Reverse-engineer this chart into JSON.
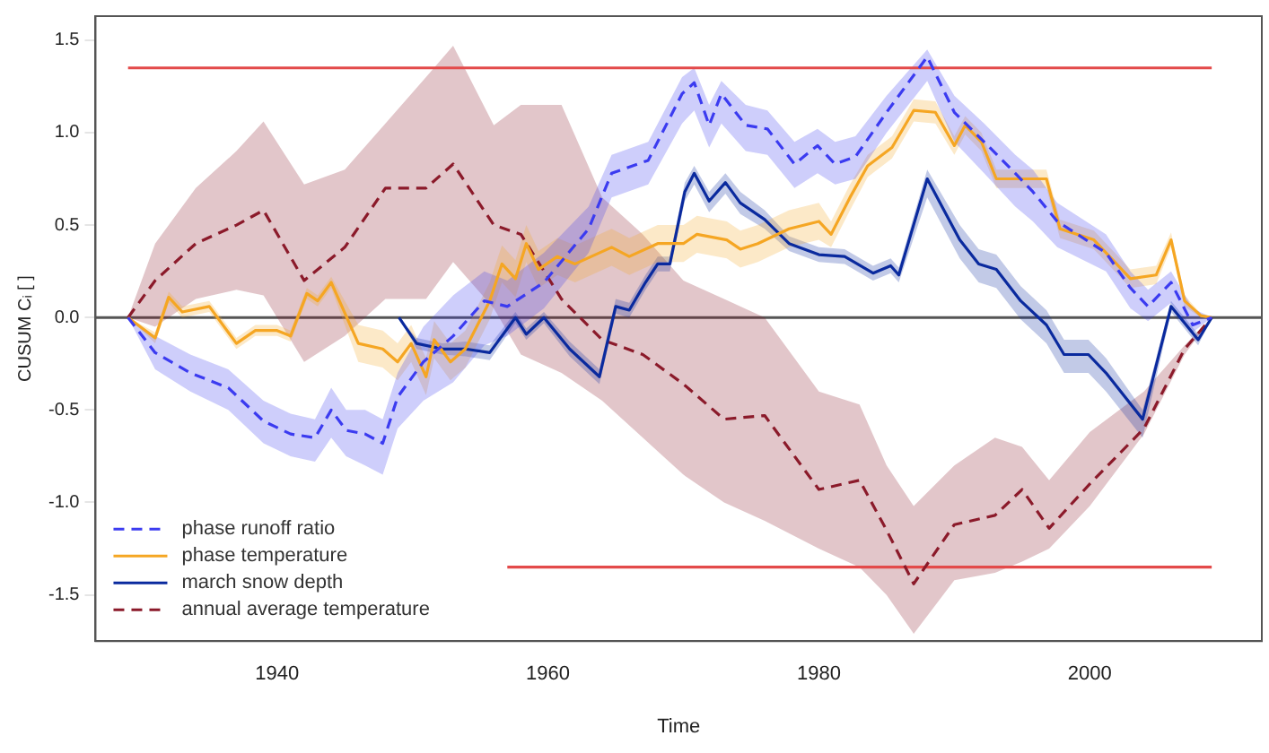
{
  "chart_data": {
    "type": "line",
    "xlabel": "Time",
    "ylabel": "CUSUM Cᵢ [ ]",
    "xlim": [
      1926.6,
      2012.7
    ],
    "ylim": [
      -1.75,
      1.63
    ],
    "xticks": [
      1940,
      1960,
      1980,
      2000
    ],
    "yticks": [
      {
        "value": -1.5,
        "label": "-1.5"
      },
      {
        "value": -1.0,
        "label": "-1.0"
      },
      {
        "value": -0.5,
        "label": "-0.5"
      },
      {
        "value": 0,
        "label": "0.0"
      },
      {
        "value": 0.5,
        "label": "0.5"
      },
      {
        "value": 1.0,
        "label": "1.0"
      },
      {
        "value": 1.5,
        "label": "1.5"
      }
    ],
    "grid": false,
    "legend": "bottom left",
    "marker": "none",
    "ref_lines": [
      {
        "axis": "y",
        "value": 0,
        "color": "#555555"
      }
    ],
    "series": [
      {
        "name": "phase runoff ratio",
        "color": "#3b3bf0",
        "line_style": "dashed",
        "x": [
          1929,
          1931,
          1933.6,
          1936.4,
          1939,
          1941,
          1942.8,
          1944,
          1945.1,
          1946.5,
          1947.8,
          1948.9,
          1950.8,
          1953,
          1955.3,
          1957,
          1959.7,
          1963,
          1964.7,
          1967.4,
          1969.9,
          1970.8,
          1971.9,
          1972.8,
          1974.6,
          1976.2,
          1978.2,
          1979.9,
          1981.2,
          1982.7,
          1985,
          1988,
          1990,
          1992.2,
          1994.5,
          1995.8,
          1997.6,
          2001.2,
          2003,
          2004.3,
          2006,
          2007.6,
          2009
        ],
        "values": [
          0,
          -0.19,
          -0.3,
          -0.38,
          -0.56,
          -0.63,
          -0.65,
          -0.5,
          -0.61,
          -0.63,
          -0.68,
          -0.43,
          -0.24,
          -0.1,
          0.09,
          0.06,
          0.19,
          0.48,
          0.78,
          0.85,
          1.21,
          1.27,
          1.04,
          1.21,
          1.04,
          1.02,
          0.83,
          0.93,
          0.83,
          0.87,
          1.11,
          1.41,
          1.11,
          0.95,
          0.78,
          0.68,
          0.52,
          0.35,
          0.16,
          0.06,
          0.19,
          -0.04,
          0
        ],
        "lower": [
          0,
          -0.28,
          -0.4,
          -0.5,
          -0.68,
          -0.75,
          -0.78,
          -0.65,
          -0.75,
          -0.8,
          -0.85,
          -0.6,
          -0.45,
          -0.35,
          -0.15,
          -0.1,
          0.05,
          0.35,
          0.65,
          0.72,
          1.05,
          1.12,
          0.92,
          1.05,
          0.9,
          0.88,
          0.7,
          0.78,
          0.72,
          0.75,
          1.0,
          1.28,
          0.95,
          0.78,
          0.6,
          0.52,
          0.38,
          0.25,
          0.05,
          -0.02,
          0.08,
          -0.08,
          0
        ],
        "upper": [
          0,
          -0.1,
          -0.2,
          -0.28,
          -0.45,
          -0.52,
          -0.55,
          -0.38,
          -0.5,
          -0.5,
          -0.55,
          -0.3,
          -0.05,
          0.12,
          0.25,
          0.2,
          0.35,
          0.6,
          0.88,
          0.95,
          1.3,
          1.35,
          1.15,
          1.28,
          1.15,
          1.12,
          0.95,
          1.02,
          0.95,
          0.98,
          1.2,
          1.45,
          1.2,
          1.05,
          0.88,
          0.8,
          0.62,
          0.45,
          0.25,
          0.15,
          0.25,
          0.05,
          0
        ]
      },
      {
        "name": "phase temperature",
        "color": "#f5a623",
        "line_style": "solid",
        "x": [
          1929,
          1931,
          1932,
          1933,
          1935,
          1937,
          1938.4,
          1940,
          1941,
          1942.2,
          1943,
          1944,
          1946,
          1947.8,
          1948.9,
          1949.9,
          1951,
          1951.6,
          1952.8,
          1953.9,
          1955.7,
          1956.6,
          1957.6,
          1958.4,
          1959.3,
          1960.7,
          1962,
          1964.7,
          1966,
          1968.1,
          1970,
          1971,
          1973.2,
          1974.2,
          1975.5,
          1977.8,
          1980,
          1980.9,
          1982.3,
          1983.6,
          1985.4,
          1987,
          1988.6,
          1990,
          1990.8,
          1992,
          1993.1,
          1996.8,
          1997.8,
          2000.3,
          2003,
          2004.9,
          2006,
          2007,
          2008.2,
          2009
        ],
        "values": [
          0,
          -0.11,
          0.11,
          0.03,
          0.06,
          -0.14,
          -0.07,
          -0.07,
          -0.1,
          0.13,
          0.09,
          0.19,
          -0.14,
          -0.17,
          -0.24,
          -0.14,
          -0.32,
          -0.12,
          -0.24,
          -0.17,
          0.09,
          0.29,
          0.21,
          0.4,
          0.26,
          0.33,
          0.29,
          0.38,
          0.33,
          0.4,
          0.4,
          0.45,
          0.42,
          0.37,
          0.4,
          0.48,
          0.52,
          0.45,
          0.65,
          0.82,
          0.92,
          1.12,
          1.11,
          0.93,
          1.04,
          0.95,
          0.75,
          0.75,
          0.48,
          0.42,
          0.21,
          0.23,
          0.42,
          0.09,
          0.01,
          0
        ],
        "lower": [
          0,
          -0.14,
          0.08,
          0,
          0.03,
          -0.17,
          -0.1,
          -0.1,
          -0.13,
          0.1,
          0.06,
          0.16,
          -0.24,
          -0.27,
          -0.34,
          -0.24,
          -0.42,
          -0.22,
          -0.34,
          -0.27,
          -0.01,
          0.19,
          0.11,
          0.3,
          0.16,
          0.23,
          0.19,
          0.28,
          0.23,
          0.3,
          0.3,
          0.35,
          0.32,
          0.27,
          0.3,
          0.38,
          0.42,
          0.38,
          0.58,
          0.76,
          0.86,
          1.06,
          1.05,
          0.88,
          0.99,
          0.9,
          0.7,
          0.7,
          0.43,
          0.37,
          0.16,
          0.18,
          0.38,
          0.06,
          0,
          0
        ],
        "upper": [
          0,
          -0.08,
          0.14,
          0.06,
          0.09,
          -0.11,
          -0.04,
          -0.04,
          -0.07,
          0.16,
          0.12,
          0.22,
          -0.04,
          -0.07,
          -0.14,
          -0.04,
          -0.22,
          -0.02,
          -0.14,
          -0.07,
          0.19,
          0.39,
          0.31,
          0.5,
          0.36,
          0.43,
          0.39,
          0.48,
          0.43,
          0.5,
          0.5,
          0.55,
          0.52,
          0.47,
          0.5,
          0.58,
          0.62,
          0.52,
          0.72,
          0.88,
          0.98,
          1.18,
          1.17,
          0.98,
          1.09,
          1.0,
          0.8,
          0.8,
          0.53,
          0.47,
          0.26,
          0.28,
          0.46,
          0.12,
          0.02,
          0
        ]
      },
      {
        "name": "march snow depth",
        "color": "#0a2a9e",
        "line_style": "solid",
        "x": [
          1949,
          1950.3,
          1952.2,
          1953.9,
          1955.7,
          1957.6,
          1958.4,
          1959.7,
          1961.6,
          1963.8,
          1965,
          1966,
          1967.2,
          1968.1,
          1969,
          1970.1,
          1970.8,
          1971.9,
          1973.1,
          1974.2,
          1976,
          1977.8,
          1980,
          1981.9,
          1984,
          1985.3,
          1985.9,
          1988,
          1990.4,
          1991.8,
          1993.1,
          1994.9,
          1996.8,
          1998.1,
          1999.9,
          2001.2,
          2003.9,
          2006,
          2008,
          2009
        ],
        "values": [
          0,
          -0.14,
          -0.17,
          -0.17,
          -0.19,
          0,
          -0.09,
          0,
          -0.17,
          -0.32,
          0.06,
          0.04,
          0.19,
          0.29,
          0.29,
          0.68,
          0.78,
          0.63,
          0.73,
          0.62,
          0.53,
          0.4,
          0.34,
          0.33,
          0.24,
          0.28,
          0.23,
          0.75,
          0.42,
          0.29,
          0.26,
          0.09,
          -0.04,
          -0.2,
          -0.2,
          -0.3,
          -0.55,
          0.06,
          -0.12,
          0
        ],
        "lower": [
          0,
          -0.17,
          -0.2,
          -0.21,
          -0.23,
          -0.03,
          -0.12,
          -0.03,
          -0.21,
          -0.36,
          0.02,
          0,
          0.15,
          0.25,
          0.25,
          0.63,
          0.72,
          0.57,
          0.67,
          0.56,
          0.48,
          0.36,
          0.3,
          0.29,
          0.2,
          0.24,
          0.19,
          0.65,
          0.32,
          0.19,
          0.16,
          -0.01,
          -0.14,
          -0.3,
          -0.3,
          -0.4,
          -0.65,
          0.03,
          -0.15,
          0
        ],
        "upper": [
          0,
          -0.11,
          -0.14,
          -0.13,
          -0.15,
          0.03,
          -0.06,
          0.03,
          -0.13,
          -0.28,
          0.1,
          0.08,
          0.23,
          0.33,
          0.33,
          0.73,
          0.82,
          0.68,
          0.78,
          0.68,
          0.58,
          0.44,
          0.38,
          0.37,
          0.28,
          0.32,
          0.27,
          0.8,
          0.5,
          0.37,
          0.34,
          0.17,
          0.04,
          -0.12,
          -0.12,
          -0.22,
          -0.5,
          0.09,
          -0.09,
          0
        ]
      },
      {
        "name": "annual average temperature",
        "color": "#8b1a2a",
        "line_style": "dashed",
        "x": [
          1929,
          1931,
          1934,
          1937,
          1939,
          1942,
          1945,
          1948,
          1951,
          1953,
          1956,
          1958,
          1961,
          1964,
          1967,
          1970,
          1973,
          1976,
          1980,
          1983,
          1985,
          1987,
          1990,
          1993,
          1995,
          1997,
          2000,
          2004,
          2007,
          2009
        ],
        "values": [
          0,
          0.2,
          0.4,
          0.5,
          0.58,
          0.2,
          0.38,
          0.7,
          0.7,
          0.83,
          0.5,
          0.45,
          0.1,
          -0.12,
          -0.2,
          -0.36,
          -0.55,
          -0.53,
          -0.93,
          -0.88,
          -1.15,
          -1.44,
          -1.12,
          -1.07,
          -0.93,
          -1.14,
          -0.9,
          -0.6,
          -0.17,
          0
        ],
        "lower": [
          0,
          -0.05,
          0.1,
          0.15,
          0.12,
          -0.24,
          -0.1,
          0.1,
          0.1,
          0.3,
          0.05,
          -0.2,
          -0.3,
          -0.45,
          -0.65,
          -0.85,
          -1.0,
          -1.1,
          -1.25,
          -1.35,
          -1.5,
          -1.71,
          -1.42,
          -1.38,
          -1.32,
          -1.25,
          -1.02,
          -0.63,
          -0.2,
          0
        ],
        "upper": [
          0,
          0.4,
          0.7,
          0.9,
          1.06,
          0.72,
          0.8,
          1.05,
          1.3,
          1.47,
          1.04,
          1.15,
          1.15,
          0.65,
          0.45,
          0.2,
          0.1,
          0.0,
          -0.4,
          -0.47,
          -0.8,
          -1.02,
          -0.8,
          -0.65,
          -0.7,
          -0.88,
          -0.62,
          -0.4,
          -0.15,
          0
        ]
      },
      {
        "type": "line",
        "color": "#e34a4a",
        "line_style": "solid",
        "x": [
          1929,
          2009
        ],
        "values": [
          1.35,
          1.35
        ]
      },
      {
        "type": "line",
        "color": "#e34a4a",
        "line_style": "solid",
        "x": [
          1957,
          2009
        ],
        "values": [
          -1.35,
          -1.35
        ]
      }
    ]
  }
}
